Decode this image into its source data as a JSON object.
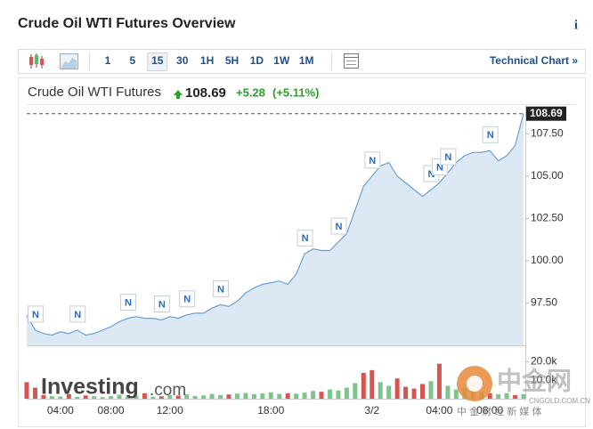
{
  "header": {
    "title": "Crude Oil WTI Futures Overview",
    "info": "i"
  },
  "toolbar": {
    "intervals": [
      "1",
      "5",
      "15",
      "30",
      "1H",
      "5H",
      "1D",
      "1W",
      "1M"
    ],
    "selected": "15",
    "link": "Technical Chart »"
  },
  "quote": {
    "name": "Crude Oil WTI Futures",
    "last": 108.69,
    "change": "+5.28",
    "change_pct": "(+5.11%)"
  },
  "watermarks": {
    "investing": "Investing",
    "investing_suffix": ".com",
    "cngold": "中金网",
    "cngold_url": "CNGOLD.COM.CN",
    "cngold_tag": "中 金 财 经 新 媒 体"
  },
  "chart_data": {
    "type": "area",
    "color": "#6a9fd4",
    "fill": "#dce8f4",
    "categories": [
      null,
      null,
      null,
      null,
      "04:00",
      null,
      null,
      null,
      null,
      null,
      "08:00",
      null,
      null,
      null,
      null,
      null,
      null,
      "12:00",
      null,
      null,
      null,
      null,
      null,
      null,
      null,
      null,
      null,
      null,
      null,
      "18:00",
      null,
      null,
      null,
      null,
      null,
      null,
      null,
      null,
      null,
      null,
      null,
      "3/2",
      null,
      null,
      null,
      null,
      null,
      null,
      null,
      "04:00",
      null,
      null,
      null,
      null,
      null,
      "08:00",
      null,
      null,
      null,
      null
    ],
    "values": [
      96.8,
      95.9,
      95.7,
      95.6,
      95.8,
      95.7,
      95.9,
      95.6,
      95.7,
      95.9,
      96.1,
      96.4,
      96.6,
      96.7,
      96.6,
      96.6,
      96.5,
      96.7,
      96.6,
      96.8,
      96.9,
      96.9,
      97.2,
      97.4,
      97.3,
      97.6,
      98.1,
      98.4,
      98.6,
      98.7,
      98.8,
      98.6,
      99.2,
      100.4,
      100.7,
      100.6,
      100.6,
      101.1,
      101.6,
      103.0,
      104.4,
      105.0,
      105.6,
      105.8,
      105.0,
      104.6,
      104.2,
      103.8,
      104.2,
      104.6,
      105.2,
      105.8,
      106.2,
      106.4,
      106.4,
      106.5,
      105.9,
      106.2,
      106.8,
      108.69
    ],
    "news": [
      null,
      "N",
      null,
      null,
      null,
      null,
      "N",
      null,
      null,
      null,
      null,
      null,
      "N",
      null,
      null,
      null,
      "N",
      null,
      null,
      "N",
      null,
      null,
      null,
      "N",
      null,
      null,
      null,
      null,
      null,
      null,
      null,
      null,
      null,
      "N",
      null,
      null,
      null,
      "N",
      null,
      null,
      null,
      "N",
      null,
      null,
      null,
      null,
      null,
      null,
      "N",
      "N",
      "N",
      null,
      null,
      null,
      null,
      "N",
      null,
      null,
      null,
      null
    ],
    "ylim": [
      95,
      109.2
    ],
    "yticks": [
      {
        "value": 97.5,
        "label": "97.50"
      },
      {
        "value": 100,
        "label": "100.00"
      },
      {
        "value": 102.5,
        "label": "102.50"
      },
      {
        "value": 105,
        "label": "105.00"
      },
      {
        "value": 107.5,
        "label": "107.50"
      }
    ],
    "volume": {
      "values": [
        9000,
        6000,
        2000,
        1500,
        1200,
        2500,
        1000,
        1800,
        1400,
        900,
        1500,
        2200,
        1200,
        1600,
        3000,
        1100,
        1300,
        2000,
        1700,
        2400,
        1500,
        1800,
        2600,
        2000,
        2300,
        2800,
        3100,
        2500,
        2900,
        3500,
        2600,
        3000,
        2700,
        3300,
        4200,
        3800,
        5000,
        4500,
        6000,
        8500,
        14000,
        15500,
        9000,
        7000,
        11000,
        6500,
        5500,
        8000,
        9500,
        19000,
        7000,
        5000,
        6000,
        4500,
        3500,
        3000,
        2500,
        3000,
        2000,
        2500
      ],
      "colors": [
        "#d9534f",
        "#d9534f",
        "#d9534f",
        "#7cc68d",
        "#7cc68d",
        "#d9534f",
        "#7cc68d",
        "#d9534f",
        "#7cc68d",
        "#7cc68d",
        "#7cc68d",
        "#7cc68d",
        "#7cc68d",
        "#7cc68d",
        "#d9534f",
        "#7cc68d",
        "#d9534f",
        "#7cc68d",
        "#d9534f",
        "#7cc68d",
        "#7cc68d",
        "#7cc68d",
        "#7cc68d",
        "#7cc68d",
        "#d9534f",
        "#7cc68d",
        "#7cc68d",
        "#7cc68d",
        "#7cc68d",
        "#7cc68d",
        "#7cc68d",
        "#d9534f",
        "#7cc68d",
        "#7cc68d",
        "#7cc68d",
        "#d9534f",
        "#7cc68d",
        "#7cc68d",
        "#7cc68d",
        "#7cc68d",
        "#d9534f",
        "#d9534f",
        "#7cc68d",
        "#7cc68d",
        "#d9534f",
        "#d9534f",
        "#d9534f",
        "#d9534f",
        "#7cc68d",
        "#d9534f",
        "#7cc68d",
        "#7cc68d",
        "#7cc68d",
        "#7cc68d",
        "#7cc68d",
        "#d9534f",
        "#7cc68d",
        "#7cc68d",
        "#d9534f",
        "#7cc68d"
      ],
      "ylim": [
        0,
        28000
      ],
      "yticks": [
        {
          "value": 10000,
          "label": "10.0k"
        },
        {
          "value": 20000,
          "label": "20.0k"
        }
      ]
    }
  }
}
